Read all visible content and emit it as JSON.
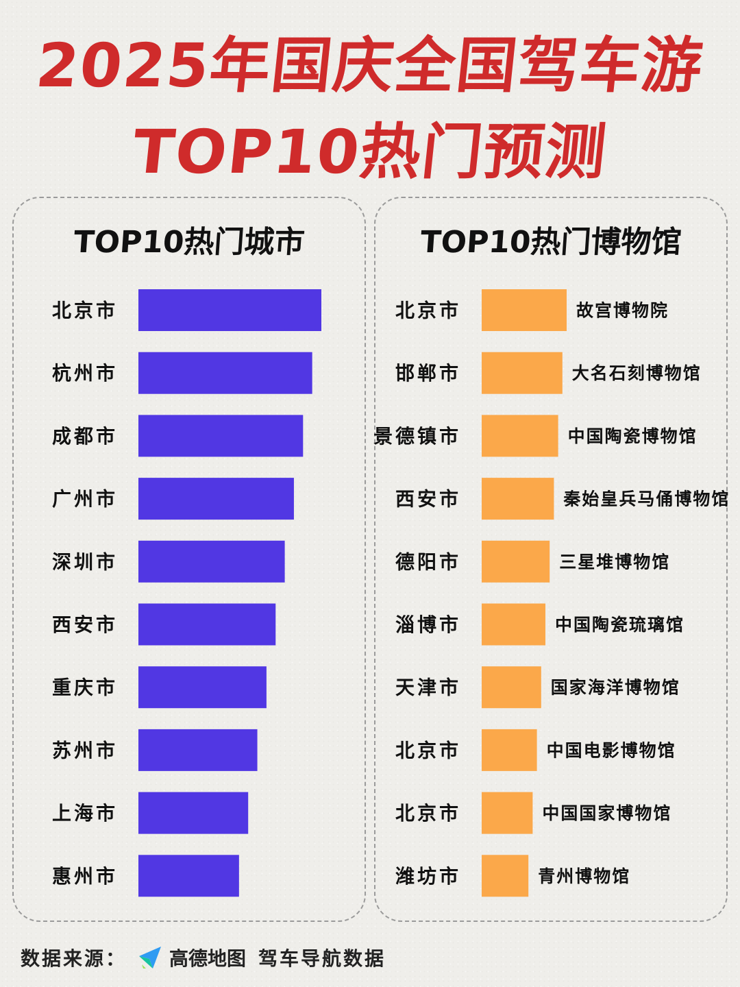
{
  "title": {
    "line1": "2025年国庆全国驾车游",
    "line2": "TOP10热门预测"
  },
  "chart_data": [
    {
      "type": "bar",
      "orientation": "horizontal",
      "title": "TOP10热门城市",
      "categories": [
        "北京市",
        "杭州市",
        "成都市",
        "广州市",
        "深圳市",
        "西安市",
        "重庆市",
        "苏州市",
        "上海市",
        "惠州市"
      ],
      "values": [
        10,
        9.5,
        9,
        8.5,
        8,
        7.5,
        7,
        6.5,
        6,
        5.5
      ],
      "value_note_hidden": true,
      "bar_color": "#5137e3"
    },
    {
      "type": "bar",
      "orientation": "horizontal",
      "title": "TOP10热门博物馆",
      "categories": [
        "北京市",
        "邯郸市",
        "景德镇市",
        "西安市",
        "德阳市",
        "淄博市",
        "天津市",
        "北京市",
        "北京市",
        "潍坊市"
      ],
      "labels": [
        "故宫博物院",
        "大名石刻博物馆",
        "中国陶瓷博物馆",
        "秦始皇兵马俑博物馆",
        "三星堆博物馆",
        "中国陶瓷琉璃馆",
        "国家海洋博物馆",
        "中国电影博物馆",
        "中国国家博物馆",
        "青州博物馆"
      ],
      "values": [
        10,
        9.5,
        9,
        8.5,
        8,
        7.5,
        7,
        6.5,
        6,
        5.5
      ],
      "bar_color": "#fba84a"
    }
  ],
  "footer": {
    "label": "数据来源：",
    "icon": "navigation-arrow-icon",
    "brand": "高德地图",
    "description": "驾车导航数据"
  }
}
